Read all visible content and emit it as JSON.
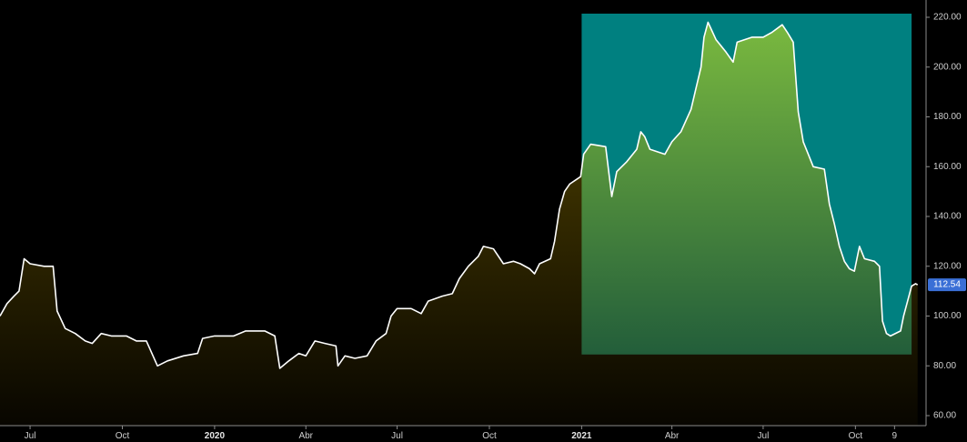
{
  "chart_data": {
    "type": "area",
    "ylim": [
      60,
      220
    ],
    "yticks": [
      60,
      80,
      100,
      120,
      140,
      160,
      180,
      200,
      220
    ],
    "ytick_labels": [
      "60.00",
      "80.00",
      "100.00",
      "120.00",
      "140.00",
      "160.00",
      "180.00",
      "200.00",
      "220.00"
    ],
    "xticks": [
      {
        "label": "Jul",
        "date": "2019-07-01",
        "bold": false
      },
      {
        "label": "Oct",
        "date": "2019-10-01",
        "bold": false
      },
      {
        "label": "2020",
        "date": "2020-01-01",
        "bold": true
      },
      {
        "label": "Abr",
        "date": "2020-04-01",
        "bold": false
      },
      {
        "label": "Jul",
        "date": "2020-07-01",
        "bold": false
      },
      {
        "label": "Oct",
        "date": "2020-10-01",
        "bold": false
      },
      {
        "label": "2021",
        "date": "2021-01-01",
        "bold": true
      },
      {
        "label": "Abr",
        "date": "2021-04-01",
        "bold": false
      },
      {
        "label": "Jul",
        "date": "2021-07-01",
        "bold": false
      },
      {
        "label": "Oct",
        "date": "2021-10-01",
        "bold": false
      },
      {
        "label": "9",
        "date": "2021-11-09",
        "bold": false
      }
    ],
    "highlight": {
      "start": "2021-01-01",
      "end": "2021-11-26",
      "low": 84.5,
      "high": 220
    },
    "last_value_label": "112.54",
    "colors": {
      "line": "#ffffff",
      "highlight_bg": "#008080",
      "badge": "#3a6fd6",
      "fill_top": "#5a4a00",
      "fill_bottom": "#080600",
      "green_top": "#7ab93f",
      "green_bottom": "#1f5a3a"
    },
    "series": [
      {
        "points": [
          [
            "2019-06-01",
            100
          ],
          [
            "2019-06-08",
            105
          ],
          [
            "2019-06-15",
            108
          ],
          [
            "2019-06-20",
            110
          ],
          [
            "2019-06-25",
            123
          ],
          [
            "2019-07-01",
            121
          ],
          [
            "2019-07-15",
            120
          ],
          [
            "2019-07-24",
            120
          ],
          [
            "2019-07-28",
            102
          ],
          [
            "2019-08-05",
            95
          ],
          [
            "2019-08-15",
            93
          ],
          [
            "2019-08-25",
            90
          ],
          [
            "2019-09-01",
            89
          ],
          [
            "2019-09-10",
            93
          ],
          [
            "2019-09-20",
            92
          ],
          [
            "2019-10-05",
            92
          ],
          [
            "2019-10-15",
            90
          ],
          [
            "2019-10-25",
            90
          ],
          [
            "2019-11-05",
            80
          ],
          [
            "2019-11-15",
            82
          ],
          [
            "2019-12-01",
            84
          ],
          [
            "2019-12-15",
            85
          ],
          [
            "2019-12-20",
            91
          ],
          [
            "2020-01-01",
            92
          ],
          [
            "2020-01-20",
            92
          ],
          [
            "2020-02-01",
            94
          ],
          [
            "2020-02-20",
            94
          ],
          [
            "2020-03-01",
            92
          ],
          [
            "2020-03-06",
            79
          ],
          [
            "2020-03-15",
            82
          ],
          [
            "2020-03-25",
            85
          ],
          [
            "2020-04-01",
            84
          ],
          [
            "2020-04-10",
            90
          ],
          [
            "2020-04-20",
            89
          ],
          [
            "2020-05-01",
            88
          ],
          [
            "2020-05-03",
            80
          ],
          [
            "2020-05-10",
            84
          ],
          [
            "2020-05-20",
            83
          ],
          [
            "2020-06-01",
            84
          ],
          [
            "2020-06-10",
            90
          ],
          [
            "2020-06-20",
            93
          ],
          [
            "2020-06-25",
            100
          ],
          [
            "2020-07-01",
            103
          ],
          [
            "2020-07-15",
            103
          ],
          [
            "2020-07-25",
            101
          ],
          [
            "2020-08-01",
            106
          ],
          [
            "2020-08-15",
            108
          ],
          [
            "2020-08-25",
            109
          ],
          [
            "2020-09-01",
            115
          ],
          [
            "2020-09-10",
            120
          ],
          [
            "2020-09-20",
            124
          ],
          [
            "2020-09-25",
            128
          ],
          [
            "2020-10-05",
            127
          ],
          [
            "2020-10-15",
            121
          ],
          [
            "2020-10-25",
            122
          ],
          [
            "2020-11-01",
            121
          ],
          [
            "2020-11-10",
            119
          ],
          [
            "2020-11-15",
            117
          ],
          [
            "2020-11-20",
            121
          ],
          [
            "2020-12-01",
            123
          ],
          [
            "2020-12-05",
            130
          ],
          [
            "2020-12-10",
            143
          ],
          [
            "2020-12-15",
            150
          ],
          [
            "2020-12-20",
            153
          ],
          [
            "2020-12-31",
            156
          ],
          [
            "2021-01-03",
            165
          ],
          [
            "2021-01-10",
            169
          ],
          [
            "2021-01-25",
            168
          ],
          [
            "2021-01-31",
            148
          ],
          [
            "2021-02-05",
            158
          ],
          [
            "2021-02-15",
            162
          ],
          [
            "2021-02-25",
            167
          ],
          [
            "2021-03-01",
            174
          ],
          [
            "2021-03-05",
            172
          ],
          [
            "2021-03-10",
            167
          ],
          [
            "2021-03-25",
            165
          ],
          [
            "2021-04-01",
            170
          ],
          [
            "2021-04-10",
            174
          ],
          [
            "2021-04-20",
            183
          ],
          [
            "2021-04-30",
            200
          ],
          [
            "2021-05-03",
            212
          ],
          [
            "2021-05-07",
            218
          ],
          [
            "2021-05-15",
            211
          ],
          [
            "2021-05-25",
            206
          ],
          [
            "2021-06-01",
            202
          ],
          [
            "2021-06-05",
            210
          ],
          [
            "2021-06-20",
            212
          ],
          [
            "2021-07-01",
            212
          ],
          [
            "2021-07-10",
            214
          ],
          [
            "2021-07-20",
            217
          ],
          [
            "2021-07-25",
            214
          ],
          [
            "2021-07-31",
            210
          ],
          [
            "2021-08-05",
            182
          ],
          [
            "2021-08-10",
            170
          ],
          [
            "2021-08-15",
            165
          ],
          [
            "2021-08-20",
            160
          ],
          [
            "2021-08-31",
            159
          ],
          [
            "2021-09-05",
            145
          ],
          [
            "2021-09-10",
            137
          ],
          [
            "2021-09-15",
            128
          ],
          [
            "2021-09-20",
            122
          ],
          [
            "2021-09-25",
            119
          ],
          [
            "2021-09-30",
            118
          ],
          [
            "2021-10-05",
            128
          ],
          [
            "2021-10-10",
            123
          ],
          [
            "2021-10-20",
            122
          ],
          [
            "2021-10-25",
            120
          ],
          [
            "2021-10-28",
            98
          ],
          [
            "2021-11-01",
            93
          ],
          [
            "2021-11-05",
            92
          ],
          [
            "2021-11-15",
            94
          ],
          [
            "2021-11-18",
            100
          ],
          [
            "2021-11-22",
            106
          ],
          [
            "2021-11-26",
            112
          ],
          [
            "2021-11-30",
            113
          ],
          [
            "2021-12-02",
            112.54
          ]
        ]
      }
    ]
  }
}
